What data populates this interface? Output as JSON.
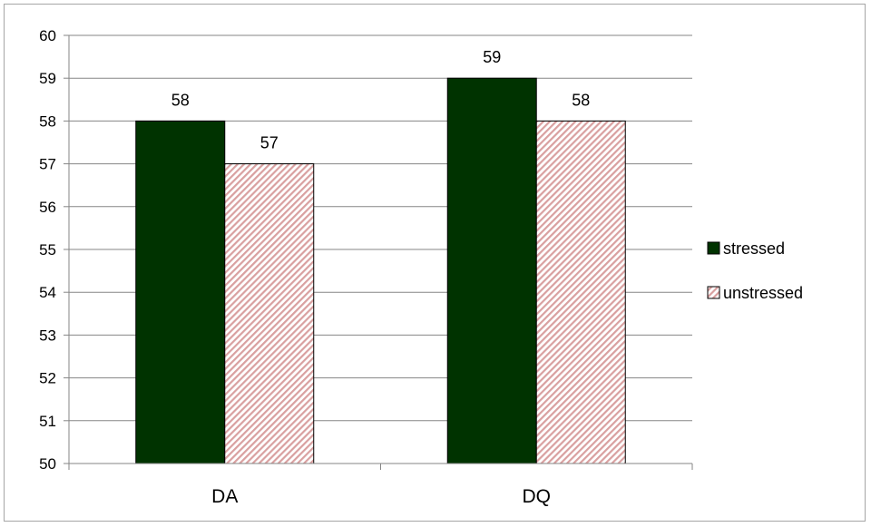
{
  "chart_data": {
    "type": "bar",
    "title": "",
    "xlabel": "",
    "ylabel": "",
    "categories": [
      "DA",
      "DQ"
    ],
    "series": [
      {
        "name": "stressed",
        "values": [
          58,
          59
        ],
        "color": "#003300",
        "pattern": "solid"
      },
      {
        "name": "unstressed",
        "values": [
          57,
          58
        ],
        "color": "#d9a0a0",
        "pattern": "diagonal-hatch"
      }
    ],
    "ylim": [
      50,
      60
    ],
    "yticks": [
      "50",
      "51",
      "52",
      "53",
      "54",
      "55",
      "56",
      "57",
      "58",
      "59",
      "60"
    ],
    "data_labels": true,
    "grid": true,
    "legend": "right"
  }
}
